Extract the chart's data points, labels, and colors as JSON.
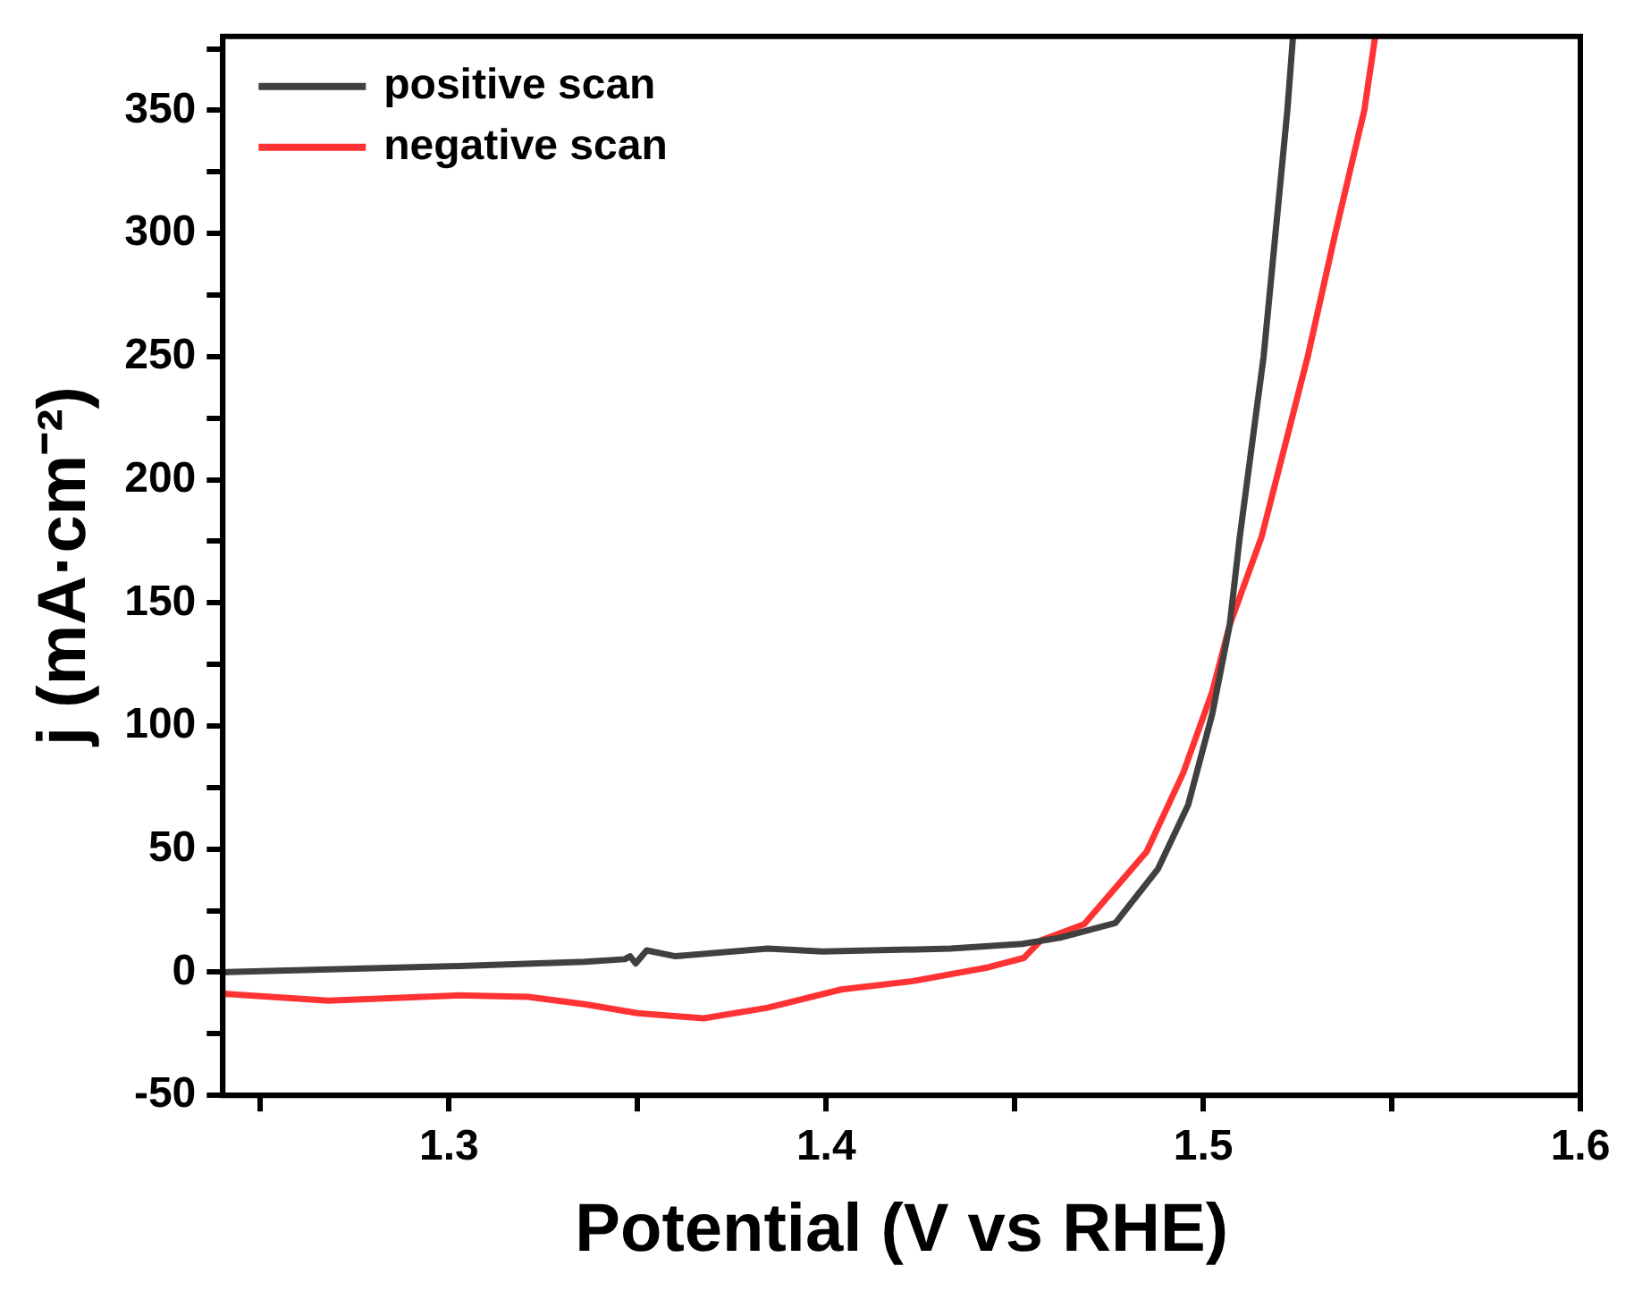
{
  "chart_data": {
    "type": "line",
    "xlabel": "Potential (V vs RHE)",
    "ylabel": "j (mA·cm⁻²)",
    "xlim": [
      1.24,
      1.6
    ],
    "ylim": [
      -50,
      380
    ],
    "xticks": [
      {
        "value": 1.25,
        "label": null
      },
      1.3,
      {
        "value": 1.35,
        "label": null
      },
      1.4,
      {
        "value": 1.45,
        "label": null
      },
      1.5,
      {
        "value": 1.55,
        "label": null
      },
      1.6
    ],
    "yticks": [
      -50,
      {
        "value": -25,
        "label": null
      },
      0,
      {
        "value": 25,
        "label": null
      },
      50,
      {
        "value": 75,
        "label": null
      },
      100,
      {
        "value": 125,
        "label": null
      },
      150,
      {
        "value": 175,
        "label": null
      },
      200,
      {
        "value": 225,
        "label": null
      },
      250,
      {
        "value": 275,
        "label": null
      },
      300,
      {
        "value": 325,
        "label": null
      },
      350,
      {
        "value": 375,
        "label": null
      }
    ],
    "grid": false,
    "legend": "top left",
    "marker": "none",
    "line_style": "solid",
    "series": [
      {
        "name": "positive scan",
        "color": "#404040",
        "x": [
          1.24,
          1.3,
          1.336,
          1.3466,
          1.348,
          1.3495,
          1.3524,
          1.36,
          1.3845,
          1.399,
          1.433,
          1.452,
          1.462,
          1.4767,
          1.488,
          1.496,
          1.5024,
          1.507,
          1.5097,
          1.516,
          1.5223,
          1.5238
        ],
        "values": [
          0,
          2.4,
          4.3,
          5.3,
          6.5,
          3.6,
          8.9,
          6.5,
          9.6,
          8.4,
          9.6,
          11.5,
          14,
          20,
          42,
          68,
          105,
          141,
          177,
          250,
          350,
          380
        ]
      },
      {
        "name": "negative scan",
        "color": "#ff3333",
        "x": [
          1.24,
          1.268,
          1.302,
          1.321,
          1.336,
          1.35,
          1.3675,
          1.3845,
          1.404,
          1.423,
          1.443,
          1.4524,
          1.457,
          1.4684,
          1.485,
          1.4947,
          1.5024,
          1.507,
          1.5155,
          1.5277,
          1.535,
          1.5427,
          1.5456
        ],
        "values": [
          -8.7,
          -11.5,
          -9.4,
          -10,
          -13,
          -16.6,
          -18.7,
          -14.4,
          -7,
          -3.6,
          2,
          5.8,
          13,
          19.5,
          49,
          81,
          114,
          141,
          177,
          250,
          300,
          350,
          380
        ]
      }
    ]
  }
}
